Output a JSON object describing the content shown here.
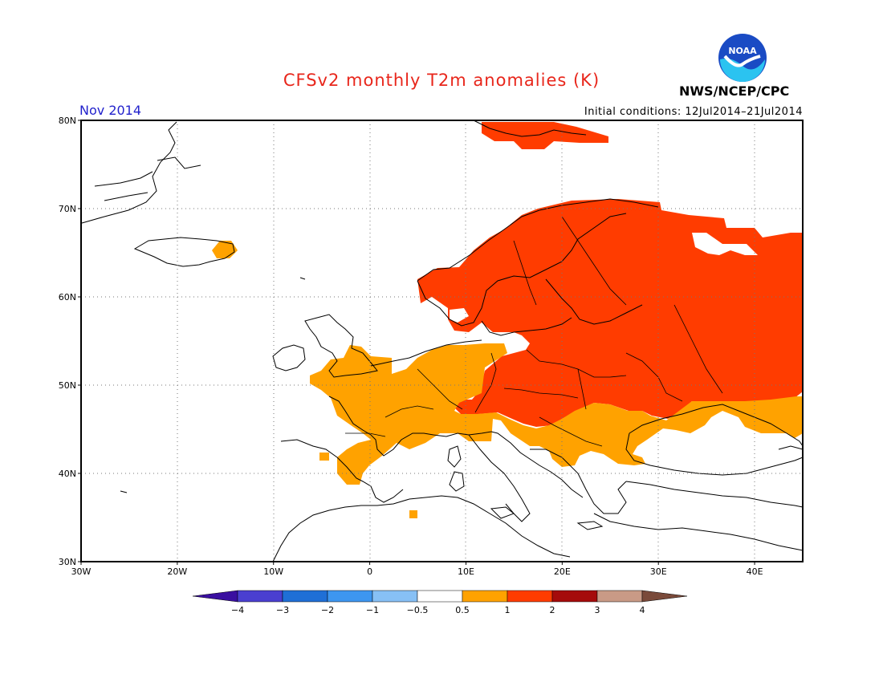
{
  "header": {
    "title": "CFSv2 monthly T2m anomalies (K)",
    "month": "Nov 2014",
    "initial_conditions": "Initial conditions: 12Jul2014–21Jul2014",
    "agency": "NWS/NCEP/CPC",
    "logo_text": "NOAA"
  },
  "map": {
    "lon_range": [
      -30,
      45
    ],
    "lat_range": [
      30,
      80
    ],
    "lon_ticks": [
      {
        "value": -30,
        "label": "30W"
      },
      {
        "value": -20,
        "label": "20W"
      },
      {
        "value": -10,
        "label": "10W"
      },
      {
        "value": 0,
        "label": "0"
      },
      {
        "value": 10,
        "label": "10E"
      },
      {
        "value": 20,
        "label": "20E"
      },
      {
        "value": 30,
        "label": "30E"
      },
      {
        "value": 40,
        "label": "40E"
      }
    ],
    "lat_ticks": [
      {
        "value": 30,
        "label": "30N"
      },
      {
        "value": 40,
        "label": "40N"
      },
      {
        "value": 50,
        "label": "50N"
      },
      {
        "value": 60,
        "label": "60N"
      },
      {
        "value": 70,
        "label": "70N"
      },
      {
        "value": 80,
        "label": "80N"
      }
    ],
    "grid": true
  },
  "colorbar": {
    "labels": [
      "−4",
      "−3",
      "−2",
      "−1",
      "−0.5",
      "0.5",
      "1",
      "2",
      "3",
      "4"
    ],
    "colors": [
      "#3a0fa0",
      "#4a3fd0",
      "#1f6fd6",
      "#3d96f0",
      "#87c0f5",
      "#ffffff",
      "#ffa200",
      "#ff3c00",
      "#a50b0b",
      "#c99a86",
      "#7a4a3a"
    ]
  }
}
